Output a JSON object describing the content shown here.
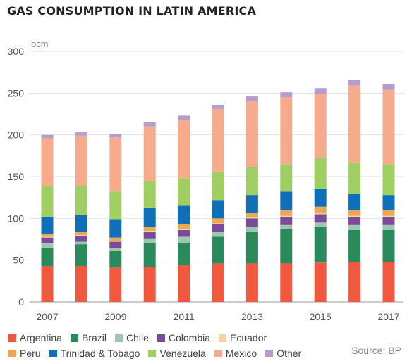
{
  "chart_data": {
    "type": "bar",
    "stacked": true,
    "title": "GAS CONSUMPTION IN LATIN AMERICA",
    "unit_label": "bcm",
    "source": "Source: BP",
    "ylim": [
      0,
      300
    ],
    "y_ticks": [
      "0",
      "50",
      "100",
      "150",
      "200",
      "250",
      "300"
    ],
    "categories": [
      "2007",
      "2008",
      "2009",
      "2010",
      "2011",
      "2012",
      "2013",
      "2014",
      "2015",
      "2016",
      "2017"
    ],
    "x_tick_labels": [
      "2007",
      "",
      "2009",
      "",
      "2011",
      "",
      "2013",
      "",
      "2015",
      "",
      "2017"
    ],
    "grid": "horizontal",
    "legend_position": "bottom",
    "series": [
      {
        "name": "Argentina",
        "color": "#f0583f",
        "values": [
          43,
          43,
          41,
          42,
          44,
          46,
          46,
          46,
          47,
          48,
          48
        ]
      },
      {
        "name": "Brazil",
        "color": "#2b8a5c",
        "values": [
          22,
          26,
          20,
          28,
          27,
          32,
          38,
          41,
          43,
          38,
          38
        ]
      },
      {
        "name": "Chile",
        "color": "#9dc7b1",
        "values": [
          5,
          3,
          3,
          6,
          7,
          6,
          6,
          5,
          5,
          6,
          6
        ]
      },
      {
        "name": "Colombia",
        "color": "#7b4b9a",
        "values": [
          7,
          7,
          8,
          8,
          8,
          9,
          10,
          10,
          10,
          10,
          10
        ]
      },
      {
        "name": "Ecuador",
        "color": "#f5d3a6",
        "values": [
          1,
          1,
          1,
          1,
          1,
          1,
          1,
          1,
          1,
          1,
          1
        ]
      },
      {
        "name": "Peru",
        "color": "#eaa855",
        "values": [
          3,
          4,
          4,
          5,
          6,
          6,
          6,
          7,
          8,
          7,
          7
        ]
      },
      {
        "name": "Trinidad & Tobago",
        "color": "#0f6fb7",
        "values": [
          21,
          20,
          22,
          23,
          22,
          22,
          21,
          22,
          21,
          19,
          18
        ]
      },
      {
        "name": "Venezuela",
        "color": "#9fcf62",
        "values": [
          37,
          35,
          33,
          32,
          33,
          34,
          33,
          33,
          37,
          38,
          37
        ]
      },
      {
        "name": "Mexico",
        "color": "#f7ab8d",
        "values": [
          57,
          60,
          65,
          65,
          70,
          75,
          79,
          80,
          77,
          92,
          89
        ]
      },
      {
        "name": "Other",
        "color": "#b59ccc",
        "values": [
          4,
          4,
          4,
          5,
          5,
          5,
          6,
          6,
          7,
          7,
          7
        ]
      }
    ]
  }
}
